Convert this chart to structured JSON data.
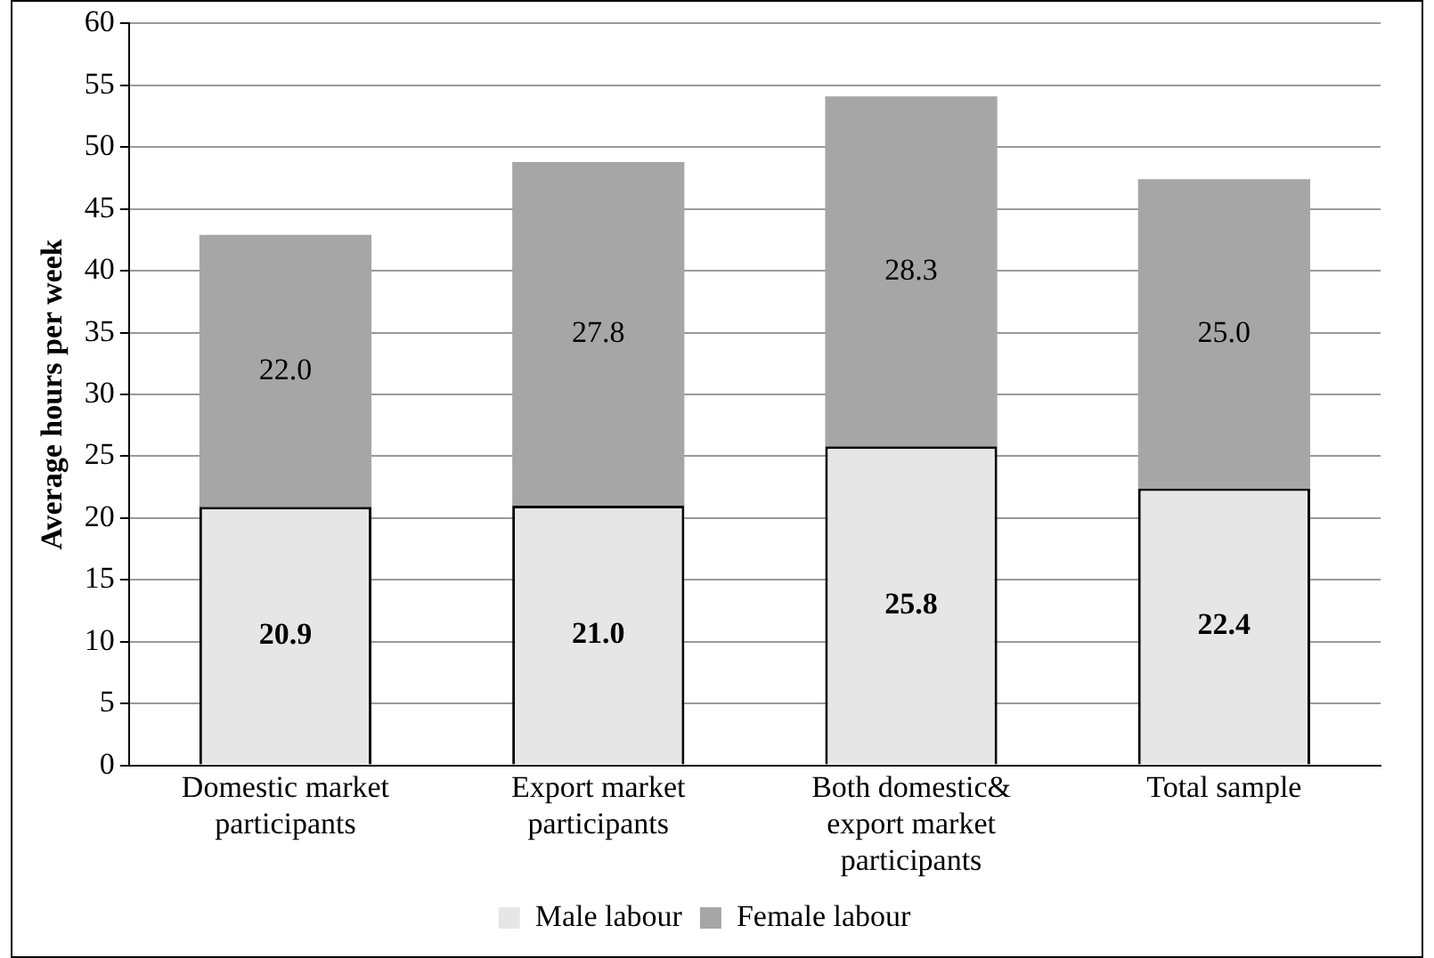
{
  "chart_data": {
    "type": "bar",
    "stacked": true,
    "ylabel": "Average hours per week",
    "categories": [
      "Domestic market participants",
      "Export market participants",
      "Both domestic& export  market participants",
      "Total sample"
    ],
    "series": [
      {
        "name": "Male labour",
        "color": "#e6e6e6",
        "values": [
          20.9,
          21.0,
          25.8,
          22.4
        ],
        "value_labels": [
          "20.9",
          "21.0",
          "25.8",
          "22.4"
        ]
      },
      {
        "name": "Female labour",
        "color": "#a6a6a6",
        "values": [
          22.0,
          27.8,
          28.3,
          25.0
        ],
        "value_labels": [
          "22.0",
          "27.8",
          "28.3",
          "25.0"
        ]
      }
    ],
    "ylim": [
      0,
      60
    ],
    "yticks": [
      0,
      5,
      10,
      15,
      20,
      25,
      30,
      35,
      40,
      45,
      50,
      55,
      60
    ],
    "grid": "y",
    "legend": "bottom"
  }
}
